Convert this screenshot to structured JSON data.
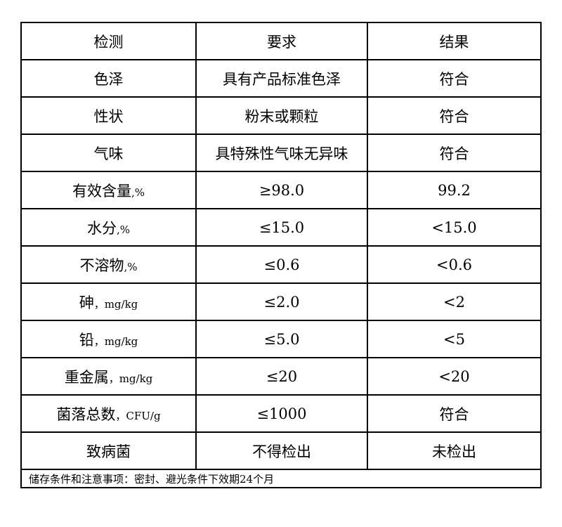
{
  "headers": [
    "检测",
    "要求",
    "结果"
  ],
  "rows": [
    {
      "item": "色泽",
      "unit": "",
      "requirement": "具有产品标准色泽",
      "result": "符合"
    },
    {
      "item": "性状",
      "unit": "",
      "requirement": "粉末或颗粒",
      "result": "符合"
    },
    {
      "item": "气味",
      "unit": "",
      "requirement": "具特殊性气味无异味",
      "result": "符合"
    },
    {
      "item": "有效含量",
      "unit": ",%",
      "requirement": "≥98.0",
      "result": "99.2"
    },
    {
      "item": "水分",
      "unit": ",%",
      "requirement": "≤15.0",
      "result": "<15.0"
    },
    {
      "item": "不溶物",
      "unit": ",%",
      "requirement": "≤0.6",
      "result": "<0.6"
    },
    {
      "item": "砷",
      "unit": "，mg/kg",
      "requirement": "≤2.0",
      "result": "<2"
    },
    {
      "item": "铅",
      "unit": "，mg/kg",
      "requirement": "≤5.0",
      "result": "<5"
    },
    {
      "item": "重金属",
      "unit": "，mg/kg",
      "requirement": "≤20",
      "result": "<20"
    },
    {
      "item": "菌落总数",
      "unit": "，CFU/g",
      "requirement": "≤1000",
      "result": "符合"
    },
    {
      "item": "致病菌",
      "unit": "",
      "requirement": "不得检出",
      "result": "未检出"
    }
  ],
  "footer": "储存条件和注意事项：密封、避光条件下效期24个月"
}
